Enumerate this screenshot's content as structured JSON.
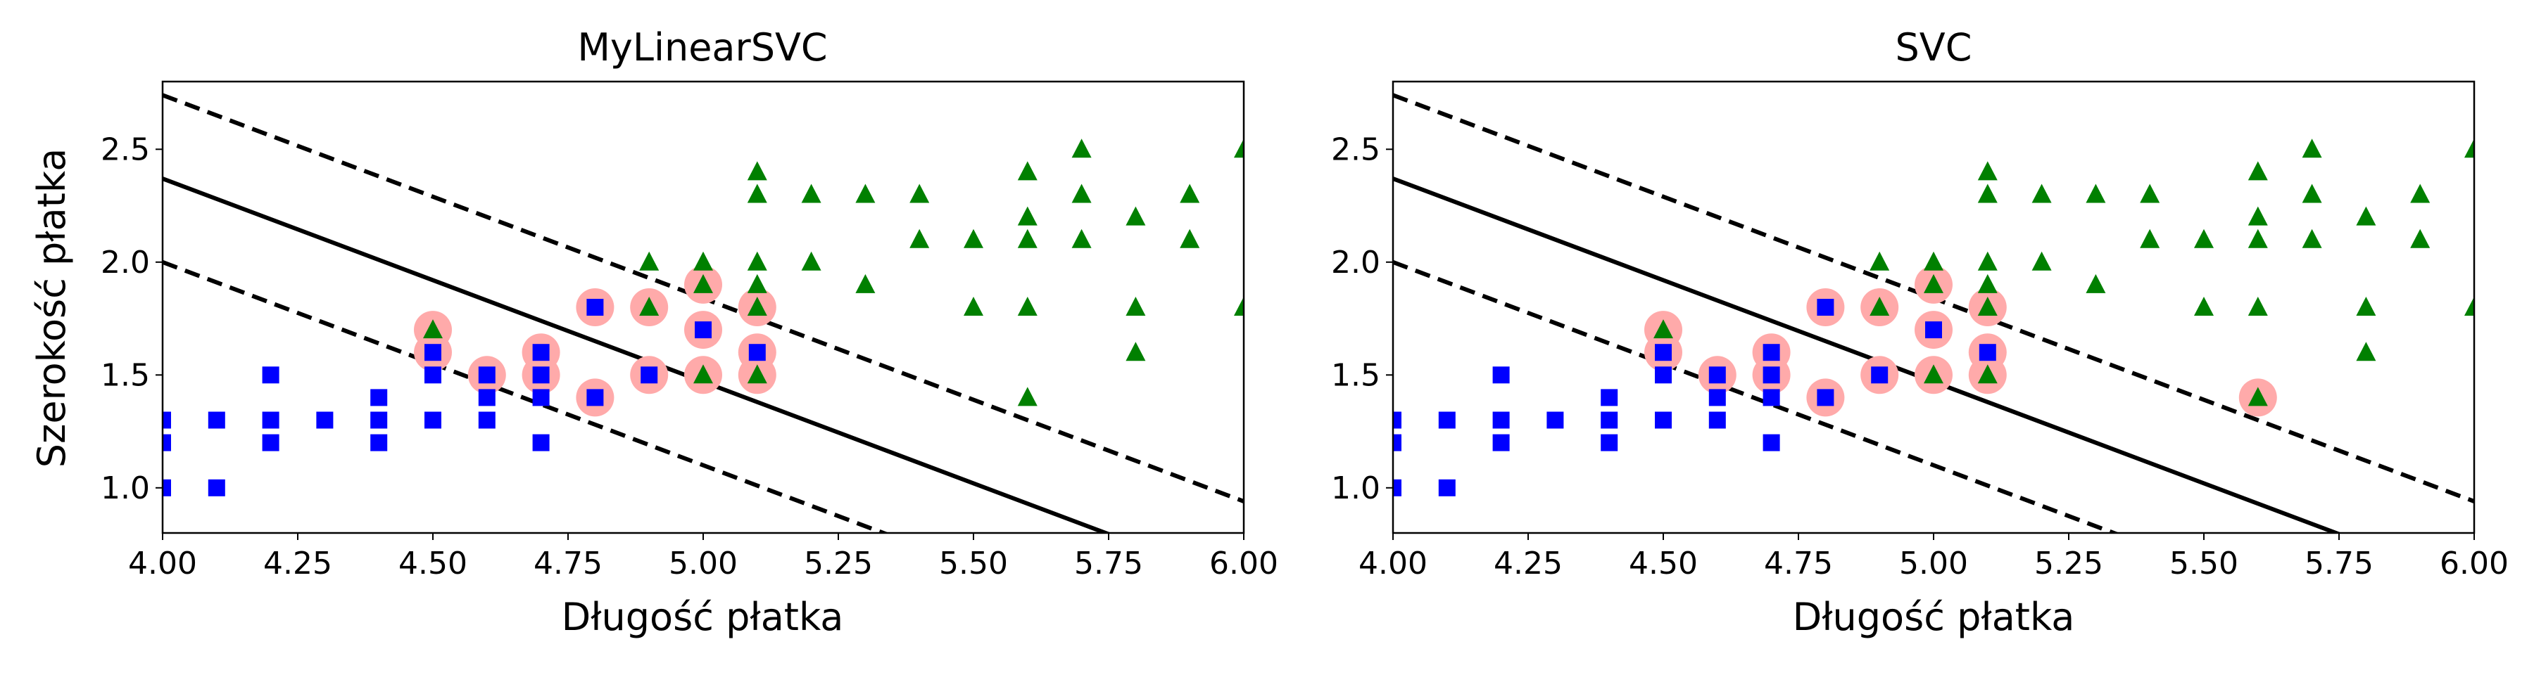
{
  "figure": {
    "ylabel": "Szerokość płatka"
  },
  "colors": {
    "setosa": "#0000ff",
    "virginica": "#008000",
    "sv": "#ffaaaa",
    "line": "#000000"
  },
  "chart_data": [
    {
      "type": "scatter",
      "title": "MyLinearSVC",
      "xlabel": "Długość płatka",
      "ylabel": "Szerokość płatka",
      "xlim": [
        4.0,
        6.0
      ],
      "ylim": [
        0.8,
        2.8
      ],
      "xticks": [
        "4.00",
        "4.25",
        "4.50",
        "4.75",
        "5.00",
        "5.25",
        "5.50",
        "5.75",
        "6.00"
      ],
      "yticks": [
        "1.0",
        "1.5",
        "2.0",
        "2.5"
      ],
      "grid": false,
      "decision_boundary": {
        "slope": -0.9,
        "intercept": 5.97,
        "margin_offset": 0.37
      },
      "series": [
        {
          "marker": "square",
          "color": "#0000ff",
          "points": [
            [
              4.0,
              1.3
            ],
            [
              4.0,
              1.2
            ],
            [
              4.0,
              1.0
            ],
            [
              4.1,
              1.3
            ],
            [
              4.1,
              1.0
            ],
            [
              4.2,
              1.5
            ],
            [
              4.2,
              1.3
            ],
            [
              4.2,
              1.2
            ],
            [
              4.3,
              1.3
            ],
            [
              4.4,
              1.4
            ],
            [
              4.4,
              1.3
            ],
            [
              4.4,
              1.2
            ],
            [
              4.5,
              1.5
            ],
            [
              4.5,
              1.3
            ],
            [
              4.6,
              1.5
            ],
            [
              4.6,
              1.4
            ],
            [
              4.6,
              1.3
            ],
            [
              4.7,
              1.6
            ],
            [
              4.7,
              1.5
            ],
            [
              4.7,
              1.4
            ],
            [
              4.7,
              1.2
            ],
            [
              4.8,
              1.8
            ],
            [
              4.8,
              1.4
            ],
            [
              4.9,
              1.5
            ],
            [
              5.0,
              1.7
            ],
            [
              5.1,
              1.6
            ],
            [
              4.5,
              1.6
            ]
          ]
        },
        {
          "marker": "triangle",
          "color": "#008000",
          "points": [
            [
              4.5,
              1.7
            ],
            [
              4.9,
              2.0
            ],
            [
              4.9,
              1.8
            ],
            [
              5.0,
              2.0
            ],
            [
              5.0,
              1.9
            ],
            [
              5.0,
              1.5
            ],
            [
              5.1,
              2.4
            ],
            [
              5.1,
              2.3
            ],
            [
              5.1,
              2.0
            ],
            [
              5.1,
              1.9
            ],
            [
              5.1,
              1.8
            ],
            [
              5.1,
              1.5
            ],
            [
              5.2,
              2.3
            ],
            [
              5.2,
              2.0
            ],
            [
              5.3,
              2.3
            ],
            [
              5.3,
              1.9
            ],
            [
              5.4,
              2.3
            ],
            [
              5.4,
              2.1
            ],
            [
              5.5,
              2.1
            ],
            [
              5.5,
              1.8
            ],
            [
              5.6,
              2.4
            ],
            [
              5.6,
              2.2
            ],
            [
              5.6,
              2.1
            ],
            [
              5.6,
              1.8
            ],
            [
              5.6,
              1.4
            ],
            [
              5.7,
              2.5
            ],
            [
              5.7,
              2.3
            ],
            [
              5.7,
              2.1
            ],
            [
              5.8,
              2.2
            ],
            [
              5.8,
              1.8
            ],
            [
              5.8,
              1.6
            ],
            [
              5.9,
              2.3
            ],
            [
              5.9,
              2.1
            ],
            [
              6.0,
              2.5
            ],
            [
              6.0,
              1.8
            ]
          ]
        },
        {
          "marker": "circle",
          "color": "#ffaaaa",
          "role": "support vectors",
          "points": [
            [
              4.5,
              1.7
            ],
            [
              4.5,
              1.6
            ],
            [
              4.6,
              1.5
            ],
            [
              4.7,
              1.6
            ],
            [
              4.7,
              1.5
            ],
            [
              4.8,
              1.8
            ],
            [
              4.8,
              1.4
            ],
            [
              4.9,
              1.8
            ],
            [
              4.9,
              1.5
            ],
            [
              5.0,
              1.9
            ],
            [
              5.0,
              1.7
            ],
            [
              5.0,
              1.5
            ],
            [
              5.1,
              1.8
            ],
            [
              5.1,
              1.6
            ],
            [
              5.1,
              1.5
            ]
          ]
        }
      ]
    },
    {
      "type": "scatter",
      "title": "SVC",
      "xlabel": "Długość płatka",
      "ylabel": "",
      "xlim": [
        4.0,
        6.0
      ],
      "ylim": [
        0.8,
        2.8
      ],
      "xticks": [
        "4.00",
        "4.25",
        "4.50",
        "4.75",
        "5.00",
        "5.25",
        "5.50",
        "5.75",
        "6.00"
      ],
      "yticks": [
        "1.0",
        "1.5",
        "2.0",
        "2.5"
      ],
      "grid": false,
      "decision_boundary": {
        "slope": -0.9,
        "intercept": 5.97,
        "margin_offset": 0.37
      },
      "series": [
        {
          "marker": "square",
          "color": "#0000ff",
          "points": [
            [
              4.0,
              1.3
            ],
            [
              4.0,
              1.2
            ],
            [
              4.0,
              1.0
            ],
            [
              4.1,
              1.3
            ],
            [
              4.1,
              1.0
            ],
            [
              4.2,
              1.5
            ],
            [
              4.2,
              1.3
            ],
            [
              4.2,
              1.2
            ],
            [
              4.3,
              1.3
            ],
            [
              4.4,
              1.4
            ],
            [
              4.4,
              1.3
            ],
            [
              4.4,
              1.2
            ],
            [
              4.5,
              1.5
            ],
            [
              4.5,
              1.3
            ],
            [
              4.6,
              1.5
            ],
            [
              4.6,
              1.4
            ],
            [
              4.6,
              1.3
            ],
            [
              4.7,
              1.6
            ],
            [
              4.7,
              1.5
            ],
            [
              4.7,
              1.4
            ],
            [
              4.7,
              1.2
            ],
            [
              4.8,
              1.8
            ],
            [
              4.8,
              1.4
            ],
            [
              4.9,
              1.5
            ],
            [
              5.0,
              1.7
            ],
            [
              5.1,
              1.6
            ],
            [
              4.5,
              1.6
            ]
          ]
        },
        {
          "marker": "triangle",
          "color": "#008000",
          "points": [
            [
              4.5,
              1.7
            ],
            [
              4.9,
              2.0
            ],
            [
              4.9,
              1.8
            ],
            [
              5.0,
              2.0
            ],
            [
              5.0,
              1.9
            ],
            [
              5.0,
              1.5
            ],
            [
              5.1,
              2.4
            ],
            [
              5.1,
              2.3
            ],
            [
              5.1,
              2.0
            ],
            [
              5.1,
              1.9
            ],
            [
              5.1,
              1.8
            ],
            [
              5.1,
              1.5
            ],
            [
              5.2,
              2.3
            ],
            [
              5.2,
              2.0
            ],
            [
              5.3,
              2.3
            ],
            [
              5.3,
              1.9
            ],
            [
              5.4,
              2.3
            ],
            [
              5.4,
              2.1
            ],
            [
              5.5,
              2.1
            ],
            [
              5.5,
              1.8
            ],
            [
              5.6,
              2.4
            ],
            [
              5.6,
              2.2
            ],
            [
              5.6,
              2.1
            ],
            [
              5.6,
              1.8
            ],
            [
              5.6,
              1.4
            ],
            [
              5.7,
              2.5
            ],
            [
              5.7,
              2.3
            ],
            [
              5.7,
              2.1
            ],
            [
              5.8,
              2.2
            ],
            [
              5.8,
              1.8
            ],
            [
              5.8,
              1.6
            ],
            [
              5.9,
              2.3
            ],
            [
              5.9,
              2.1
            ],
            [
              6.0,
              2.5
            ],
            [
              6.0,
              1.8
            ]
          ]
        },
        {
          "marker": "circle",
          "color": "#ffaaaa",
          "role": "support vectors",
          "points": [
            [
              4.5,
              1.7
            ],
            [
              4.5,
              1.6
            ],
            [
              4.6,
              1.5
            ],
            [
              4.7,
              1.6
            ],
            [
              4.7,
              1.5
            ],
            [
              4.8,
              1.8
            ],
            [
              4.8,
              1.4
            ],
            [
              4.9,
              1.8
            ],
            [
              4.9,
              1.5
            ],
            [
              5.0,
              1.9
            ],
            [
              5.0,
              1.7
            ],
            [
              5.0,
              1.5
            ],
            [
              5.1,
              1.8
            ],
            [
              5.1,
              1.6
            ],
            [
              5.1,
              1.5
            ],
            [
              5.6,
              1.4
            ]
          ]
        }
      ]
    }
  ]
}
